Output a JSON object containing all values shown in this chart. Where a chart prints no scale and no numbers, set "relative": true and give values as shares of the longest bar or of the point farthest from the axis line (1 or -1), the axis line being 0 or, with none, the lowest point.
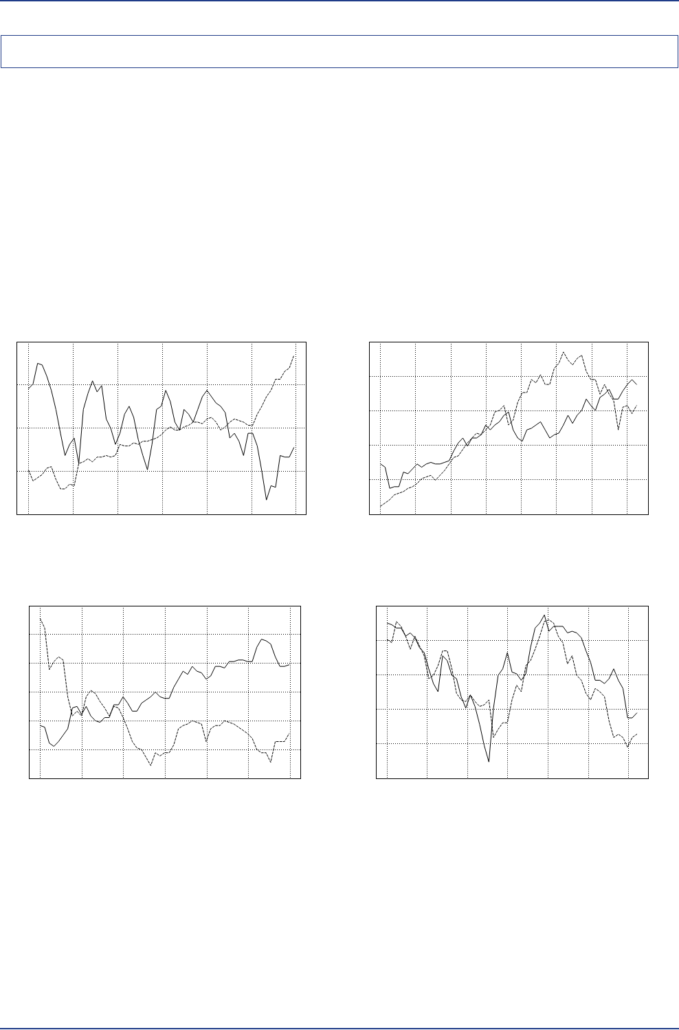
{
  "chart_data": [
    {
      "type": "line",
      "relative": true,
      "grid": true,
      "tick_labels": false,
      "marker": "none",
      "categories": [
        null,
        null,
        null,
        null,
        null,
        null,
        null,
        null,
        null,
        null,
        null,
        null,
        null,
        null,
        null,
        null,
        null,
        null,
        null,
        null,
        null,
        null,
        null,
        null,
        null,
        null,
        null,
        null,
        null,
        null,
        null,
        null,
        null,
        null,
        null,
        null,
        null,
        null,
        null,
        null,
        null,
        null,
        null,
        null,
        null,
        null,
        null,
        null,
        null,
        null,
        null,
        null,
        null,
        null,
        null,
        null,
        null,
        null,
        null
      ],
      "series": [
        {
          "color": "#000000",
          "line_style": "solid",
          "values": [
            0.79,
            0.82,
            0.95,
            0.94,
            0.87,
            0.78,
            0.66,
            0.51,
            0.37,
            0.44,
            0.48,
            0.32,
            0.66,
            0.76,
            0.84,
            0.77,
            0.81,
            0.6,
            0.54,
            0.44,
            0.51,
            0.63,
            0.68,
            0.61,
            0.47,
            0.37,
            0.28,
            0.44,
            0.66,
            0.68,
            0.78,
            0.71,
            0.58,
            0.53,
            0.66,
            0.63,
            0.58,
            0.66,
            0.74,
            0.78,
            0.74,
            0.7,
            0.68,
            0.64,
            0.48,
            0.51,
            0.46,
            0.37,
            0.51,
            0.51,
            0.43,
            0.27,
            0.09,
            0.18,
            0.17,
            0.37,
            0.36,
            0.36,
            0.42
          ]
        },
        {
          "color": "#000000",
          "line_style": "dashed",
          "values": [
            0.28,
            0.21,
            0.23,
            0.25,
            0.29,
            0.3,
            0.22,
            0.16,
            0.16,
            0.19,
            0.18,
            0.32,
            0.33,
            0.35,
            0.33,
            0.36,
            0.36,
            0.37,
            0.36,
            0.37,
            0.44,
            0.43,
            0.43,
            0.45,
            0.44,
            0.46,
            0.46,
            0.47,
            0.48,
            0.5,
            0.53,
            0.55,
            0.53,
            0.53,
            0.55,
            0.56,
            0.58,
            0.58,
            0.57,
            0.6,
            0.61,
            0.58,
            0.53,
            0.55,
            0.58,
            0.6,
            0.59,
            0.58,
            0.56,
            0.56,
            0.63,
            0.68,
            0.74,
            0.78,
            0.85,
            0.85,
            0.9,
            0.92,
            1
          ]
        }
      ]
    },
    {
      "type": "line",
      "relative": true,
      "grid": true,
      "tick_labels": false,
      "marker": "none",
      "categories": [
        null,
        null,
        null,
        null,
        null,
        null,
        null,
        null,
        null,
        null,
        null,
        null,
        null,
        null,
        null,
        null,
        null,
        null,
        null,
        null,
        null,
        null,
        null,
        null,
        null,
        null,
        null,
        null,
        null,
        null,
        null,
        null,
        null,
        null,
        null,
        null,
        null,
        null,
        null,
        null,
        null,
        null,
        null,
        null,
        null,
        null,
        null,
        null,
        null,
        null,
        null,
        null,
        null,
        null,
        null,
        null,
        null
      ],
      "series": [
        {
          "color": "#000000",
          "line_style": "solid",
          "values": [
            0.31,
            0.29,
            0.16,
            0.17,
            0.17,
            0.26,
            0.25,
            0.28,
            0.31,
            0.29,
            0.31,
            0.32,
            0.31,
            0.31,
            0.32,
            0.33,
            0.39,
            0.44,
            0.47,
            0.42,
            0.47,
            0.47,
            0.49,
            0.55,
            0.52,
            0.55,
            0.57,
            0.61,
            0.63,
            0.52,
            0.47,
            0.45,
            0.52,
            0.53,
            0.55,
            0.57,
            0.52,
            0.47,
            0.49,
            0.5,
            0.55,
            0.61,
            0.56,
            0.61,
            0.64,
            0.71,
            0.67,
            0.64,
            0.72,
            0.74,
            0.77,
            0.71,
            0.71,
            0.76,
            0.8,
            0.83,
            0.8
          ]
        },
        {
          "color": "#000000",
          "line_style": "dashed",
          "values": [
            0.05,
            0.07,
            0.09,
            0.12,
            0.13,
            0.14,
            0.16,
            0.17,
            0.19,
            0.22,
            0.23,
            0.24,
            0.21,
            0.24,
            0.27,
            0.31,
            0.35,
            0.36,
            0.4,
            0.44,
            0.47,
            0.5,
            0.49,
            0.52,
            0.55,
            0.63,
            0.64,
            0.67,
            0.55,
            0.58,
            0.69,
            0.75,
            0.75,
            0.83,
            0.81,
            0.86,
            0.8,
            0.8,
            0.9,
            0.93,
            1,
            0.95,
            0.92,
            0.96,
            0.98,
            0.88,
            0.83,
            0.83,
            0.74,
            0.8,
            0.74,
            0.7,
            0.52,
            0.66,
            0.67,
            0.62,
            0.67
          ]
        }
      ]
    },
    {
      "type": "line",
      "relative": true,
      "grid": true,
      "tick_labels": false,
      "marker": "none",
      "categories": [
        null,
        null,
        null,
        null,
        null,
        null,
        null,
        null,
        null,
        null,
        null,
        null,
        null,
        null,
        null,
        null,
        null,
        null,
        null,
        null,
        null,
        null,
        null,
        null,
        null,
        null,
        null,
        null,
        null,
        null,
        null,
        null,
        null,
        null,
        null,
        null,
        null,
        null,
        null,
        null,
        null,
        null,
        null,
        null,
        null,
        null,
        null,
        null,
        null,
        null,
        null,
        null,
        null,
        null,
        null
      ],
      "series": [
        {
          "color": "#000000",
          "line_style": "solid",
          "values": [
            0.33,
            0.32,
            0.22,
            0.2,
            0.23,
            0.27,
            0.31,
            0.44,
            0.45,
            0.4,
            0.45,
            0.39,
            0.36,
            0.35,
            0.38,
            0.38,
            0.46,
            0.46,
            0.51,
            0.47,
            0.42,
            0.42,
            0.47,
            0.49,
            0.51,
            0.54,
            0.51,
            0.5,
            0.5,
            0.57,
            0.62,
            0.67,
            0.65,
            0.7,
            0.67,
            0.66,
            0.62,
            0.64,
            0.7,
            0.7,
            0.69,
            0.73,
            0.73,
            0.74,
            0.74,
            0.73,
            0.73,
            0.82,
            0.87,
            0.86,
            0.84,
            0.76,
            0.7,
            0.7,
            0.71
          ]
        },
        {
          "color": "#000000",
          "line_style": "dashed",
          "values": [
            1,
            0.94,
            0.68,
            0.73,
            0.76,
            0.74,
            0.51,
            0.39,
            0.42,
            0.39,
            0.51,
            0.55,
            0.53,
            0.48,
            0.44,
            0.39,
            0.45,
            0.44,
            0.38,
            0.31,
            0.23,
            0.19,
            0.18,
            0.13,
            0.08,
            0.16,
            0.14,
            0.16,
            0.16,
            0.21,
            0.31,
            0.33,
            0.34,
            0.36,
            0.35,
            0.34,
            0.23,
            0.31,
            0.33,
            0.33,
            0.36,
            0.35,
            0.34,
            0.32,
            0.3,
            0.28,
            0.25,
            0.18,
            0.16,
            0.16,
            0.1,
            0.23,
            0.23,
            0.23,
            0.28
          ]
        }
      ]
    },
    {
      "type": "line",
      "relative": true,
      "grid": true,
      "tick_labels": false,
      "marker": "none",
      "categories": [
        null,
        null,
        null,
        null,
        null,
        null,
        null,
        null,
        null,
        null,
        null,
        null,
        null,
        null,
        null,
        null,
        null,
        null,
        null,
        null,
        null,
        null,
        null,
        null,
        null,
        null,
        null,
        null,
        null,
        null,
        null,
        null,
        null,
        null,
        null,
        null,
        null,
        null,
        null,
        null,
        null,
        null,
        null,
        null,
        null,
        null,
        null,
        null,
        null,
        null,
        null,
        null,
        null,
        null,
        null
      ],
      "series": [
        {
          "color": "#000000",
          "line_style": "solid",
          "values": [
            0.95,
            0.94,
            0.92,
            0.92,
            0.87,
            0.89,
            0.86,
            0.8,
            0.77,
            0.67,
            0.58,
            0.53,
            0.75,
            0.72,
            0.63,
            0.61,
            0.5,
            0.43,
            0.51,
            0.44,
            0.33,
            0.2,
            0.1,
            0.43,
            0.63,
            0.67,
            0.77,
            0.65,
            0.64,
            0.6,
            0.64,
            0.8,
            0.92,
            0.95,
            1,
            0.9,
            0.93,
            0.93,
            0.93,
            0.89,
            0.9,
            0.89,
            0.86,
            0.78,
            0.71,
            0.6,
            0.6,
            0.58,
            0.61,
            0.67,
            0.6,
            0.55,
            0.37,
            0.37,
            0.4
          ]
        },
        {
          "color": "#000000",
          "line_style": "dashed",
          "values": [
            0.85,
            0.83,
            0.96,
            0.93,
            0.87,
            0.79,
            0.87,
            0.81,
            0.75,
            0.61,
            0.63,
            0.69,
            0.78,
            0.78,
            0.67,
            0.52,
            0.48,
            0.47,
            0.51,
            0.47,
            0.44,
            0.45,
            0.48,
            0.25,
            0.3,
            0.34,
            0.34,
            0.48,
            0.57,
            0.53,
            0.69,
            0.72,
            0.79,
            0.87,
            0.96,
            0.97,
            0.95,
            0.87,
            0.83,
            0.7,
            0.75,
            0.63,
            0.6,
            0.52,
            0.48,
            0.55,
            0.53,
            0.5,
            0.35,
            0.25,
            0.27,
            0.25,
            0.19,
            0.25,
            0.27
          ]
        }
      ]
    }
  ]
}
